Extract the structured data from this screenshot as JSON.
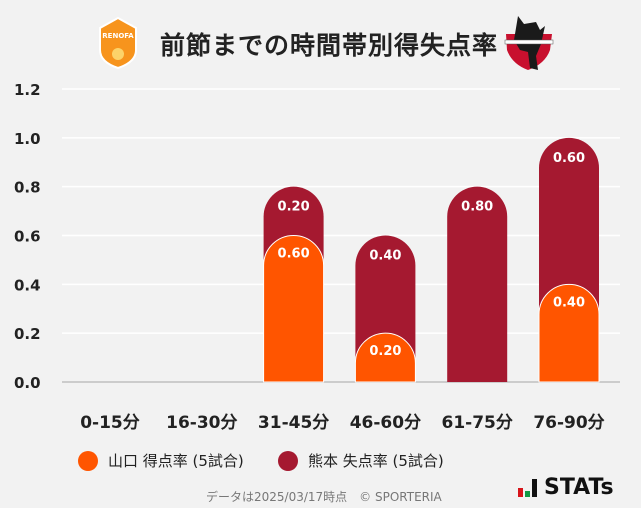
{
  "header": {
    "title": "前節までの時間帯別得失点率",
    "home_logo_text": "RENOFA YAMAGUCHI FC",
    "away_logo_text": "ROASSO KUMAMOTO"
  },
  "legend": {
    "yamaguchi": "山口 得点率 (5試合)",
    "kumamoto": "熊本 失点率 (5試合)"
  },
  "colors": {
    "yamaguchi": "#ff5500",
    "kumamoto": "#a51930"
  },
  "footer": {
    "note": "データは2025/03/17時点　© SPORTERIA",
    "brand": "STATs"
  },
  "chart_data": {
    "type": "bar",
    "stacked": true,
    "categories": [
      "0-15分",
      "16-30分",
      "31-45分",
      "46-60分",
      "61-75分",
      "76-90分"
    ],
    "series": [
      {
        "name": "山口 得点率 (5試合)",
        "values": [
          0,
          0,
          0.6,
          0.2,
          0,
          0.4
        ]
      },
      {
        "name": "熊本 失点率 (5試合)",
        "values": [
          0,
          0,
          0.2,
          0.4,
          0.8,
          0.6
        ]
      }
    ],
    "yticks": [
      "0.0",
      "0.2",
      "0.4",
      "0.6",
      "0.8",
      "1.0",
      "1.2"
    ],
    "ylim": [
      0,
      1.2
    ],
    "grid": true,
    "legend_position": "bottom"
  }
}
